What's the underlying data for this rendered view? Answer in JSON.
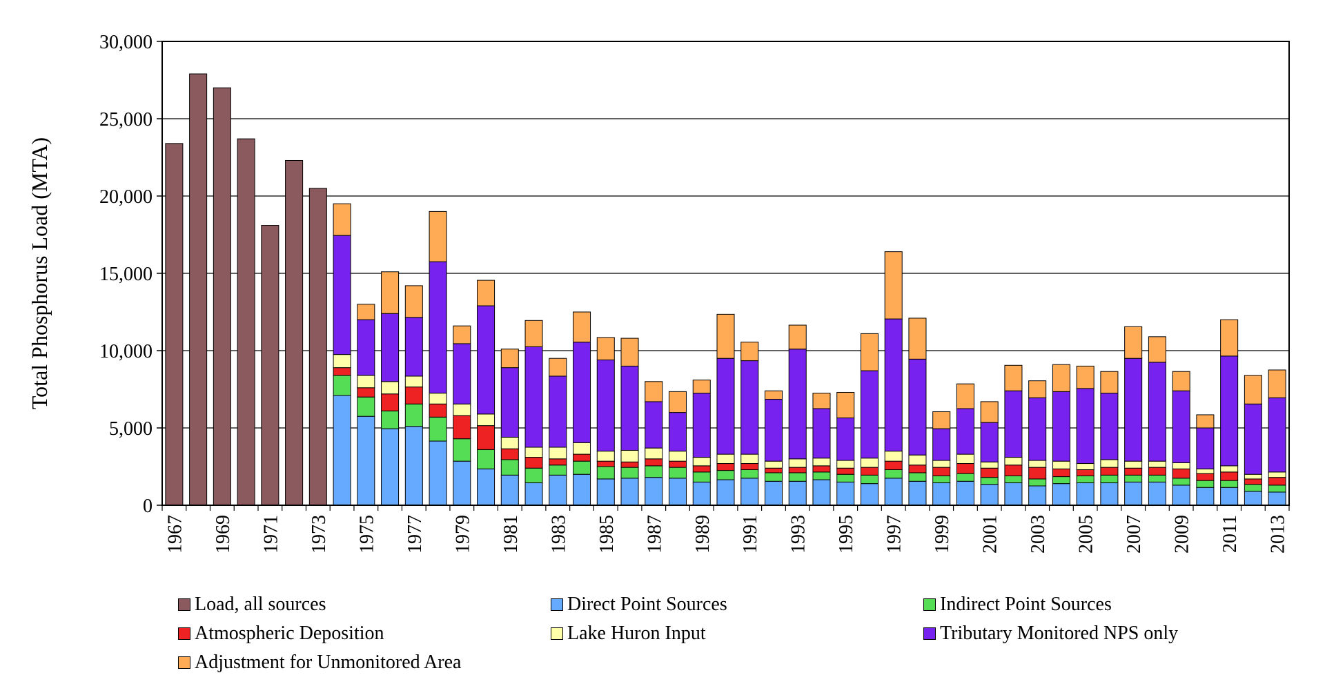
{
  "chart_data": {
    "type": "bar",
    "stacked": true,
    "title": "",
    "xlabel": "",
    "ylabel": "Total Phosphorus Load (MTA)",
    "ylim": [
      0,
      30000
    ],
    "yticks": [
      0,
      5000,
      10000,
      15000,
      20000,
      25000,
      30000
    ],
    "ytick_labels": [
      "0",
      "5,000",
      "10,000",
      "15,000",
      "20,000",
      "25,000",
      "30,000"
    ],
    "grid": "horizontal",
    "legend_position": "bottom",
    "categories": [
      "1967",
      "1968",
      "1969",
      "1970",
      "1971",
      "1972",
      "1973",
      "1974",
      "1975",
      "1976",
      "1977",
      "1978",
      "1979",
      "1980",
      "1981",
      "1982",
      "1983",
      "1984",
      "1985",
      "1986",
      "1987",
      "1988",
      "1989",
      "1990",
      "1991",
      "1992",
      "1993",
      "1994",
      "1995",
      "1996",
      "1997",
      "1998",
      "1999",
      "2000",
      "2001",
      "2002",
      "2003",
      "2004",
      "2005",
      "2006",
      "2007",
      "2008",
      "2009",
      "2010",
      "2011",
      "2012",
      "2013"
    ],
    "xtick_labels": [
      "1967",
      "",
      "1969",
      "",
      "1971",
      "",
      "1973",
      "",
      "1975",
      "",
      "1977",
      "",
      "1979",
      "",
      "1981",
      "",
      "1983",
      "",
      "1985",
      "",
      "1987",
      "",
      "1989",
      "",
      "1991",
      "",
      "1993",
      "",
      "1995",
      "",
      "1997",
      "",
      "1999",
      "",
      "2001",
      "",
      "2003",
      "",
      "2005",
      "",
      "2007",
      "",
      "2009",
      "",
      "2011",
      "",
      "2013"
    ],
    "series": [
      {
        "name": "Load, all sources",
        "color": "#8B5A5F",
        "values": [
          23400,
          27900,
          27000,
          23700,
          18100,
          22300,
          20500,
          0,
          0,
          0,
          0,
          0,
          0,
          0,
          0,
          0,
          0,
          0,
          0,
          0,
          0,
          0,
          0,
          0,
          0,
          0,
          0,
          0,
          0,
          0,
          0,
          0,
          0,
          0,
          0,
          0,
          0,
          0,
          0,
          0,
          0,
          0,
          0,
          0,
          0,
          0,
          0
        ]
      },
      {
        "name": "Direct Point Sources",
        "color": "#66AAFF",
        "values": [
          0,
          0,
          0,
          0,
          0,
          0,
          0,
          7100,
          5750,
          4950,
          5100,
          4150,
          2850,
          2350,
          1950,
          1450,
          1950,
          2000,
          1700,
          1750,
          1800,
          1750,
          1500,
          1650,
          1750,
          1550,
          1550,
          1650,
          1500,
          1400,
          1750,
          1550,
          1450,
          1550,
          1350,
          1450,
          1250,
          1400,
          1450,
          1450,
          1500,
          1500,
          1300,
          1150,
          1150,
          900,
          850
        ]
      },
      {
        "name": "Indirect Point Sources",
        "color": "#55DD55",
        "values": [
          0,
          0,
          0,
          0,
          0,
          0,
          0,
          1300,
          1250,
          1150,
          1450,
          1550,
          1450,
          1250,
          1000,
          950,
          650,
          850,
          800,
          700,
          750,
          700,
          650,
          600,
          550,
          550,
          550,
          500,
          500,
          550,
          550,
          550,
          450,
          500,
          450,
          450,
          450,
          450,
          450,
          500,
          450,
          450,
          450,
          450,
          450,
          450,
          450
        ]
      },
      {
        "name": "Atmospheric Deposition",
        "color": "#EE2222",
        "values": [
          0,
          0,
          0,
          0,
          0,
          0,
          0,
          500,
          600,
          1100,
          1100,
          850,
          1500,
          1550,
          700,
          700,
          400,
          450,
          350,
          350,
          450,
          400,
          400,
          450,
          400,
          300,
          350,
          400,
          400,
          500,
          550,
          500,
          550,
          650,
          600,
          700,
          750,
          500,
          400,
          500,
          450,
          500,
          600,
          450,
          550,
          350,
          500
        ]
      },
      {
        "name": "Lake Huron Input",
        "color": "#FFFFAA",
        "values": [
          0,
          0,
          0,
          0,
          0,
          0,
          0,
          850,
          800,
          800,
          700,
          700,
          750,
          750,
          750,
          650,
          750,
          750,
          650,
          750,
          700,
          650,
          550,
          600,
          600,
          450,
          550,
          500,
          500,
          600,
          650,
          650,
          450,
          600,
          400,
          500,
          450,
          500,
          400,
          500,
          450,
          400,
          400,
          300,
          400,
          300,
          350
        ]
      },
      {
        "name": "Tributary Monitored NPS only",
        "color": "#7722EE",
        "values": [
          0,
          0,
          0,
          0,
          0,
          0,
          0,
          7700,
          3600,
          4400,
          3800,
          8500,
          3900,
          7000,
          4500,
          6500,
          4600,
          6500,
          5900,
          5450,
          3000,
          2500,
          4150,
          6200,
          6050,
          4000,
          7100,
          3200,
          2750,
          5650,
          8550,
          6200,
          2050,
          2950,
          2550,
          4300,
          4050,
          4500,
          4850,
          4300,
          6650,
          6400,
          4650,
          2650,
          7100,
          4550,
          4800
        ]
      },
      {
        "name": "Adjustment for Unmonitored Area",
        "color": "#FFAA55",
        "values": [
          0,
          0,
          0,
          0,
          0,
          0,
          0,
          2050,
          1000,
          2700,
          2050,
          3250,
          1150,
          1650,
          1200,
          1700,
          1150,
          1950,
          1450,
          1800,
          1300,
          1350,
          850,
          2850,
          1200,
          550,
          1550,
          1000,
          1650,
          2400,
          4350,
          2650,
          1100,
          1600,
          1350,
          1650,
          1100,
          1750,
          1450,
          1400,
          2050,
          1650,
          1250,
          850,
          2350,
          1850,
          1800
        ]
      }
    ]
  }
}
